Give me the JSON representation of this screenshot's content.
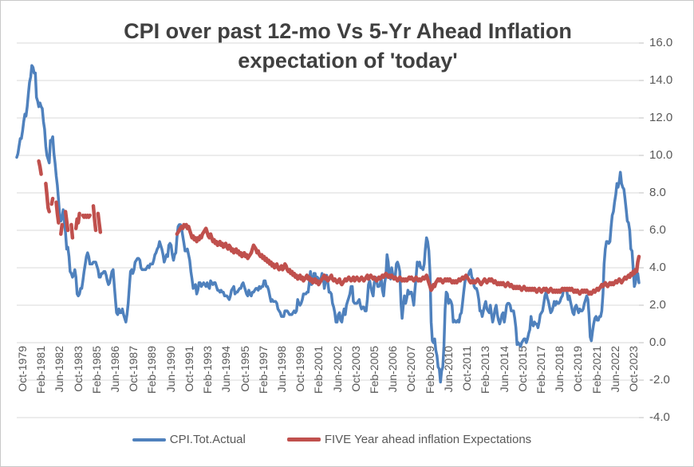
{
  "title": {
    "line1": "CPI over past 12-mo Vs 5-Yr Ahead Inflation",
    "line2": "expectation of 'today'"
  },
  "colors": {
    "cpi_line": "#4F81BD",
    "expectations_line": "#C0504D",
    "gridline": "#D9D9D9",
    "tick": "#BFBFBF",
    "axis_text": "#595959",
    "title_text": "#404040"
  },
  "y_axis": {
    "tick_labels": [
      "16.0",
      "14.0",
      "12.0",
      "10.0",
      "8.0",
      "6.0",
      "4.0",
      "2.0",
      "0.0",
      "-2.0",
      "-4.0"
    ],
    "min": -4,
    "max": 16,
    "step": 2
  },
  "x_axis": {
    "frequency": "monthly",
    "range_start": "Oct-1979",
    "range_end": "Oct-2023",
    "tick_labels": [
      "Oct-1979",
      "Feb-1981",
      "Jun-1982",
      "Oct-1983",
      "Feb-1985",
      "Jun-1986",
      "Oct-1987",
      "Feb-1989",
      "Jun-1990",
      "Oct-1991",
      "Feb-1993",
      "Jun-1994",
      "Oct-1995",
      "Feb-1997",
      "Jun-1998",
      "Oct-1999",
      "Feb-2001",
      "Jun-2002",
      "Oct-2003",
      "Feb-2005",
      "Jun-2006",
      "Oct-2007",
      "Feb-2009",
      "Jun-2010",
      "Oct-2011",
      "Feb-2013",
      "Jun-2014",
      "Oct-2015",
      "Feb-2017",
      "Jun-2018",
      "Oct-2019",
      "Feb-2021",
      "Jun-2022",
      "Oct-2023"
    ]
  },
  "chart_data": {
    "type": "line",
    "title": "CPI over past 12-mo Vs 5-Yr Ahead Inflation expectation of 'today'",
    "xlabel": "",
    "ylabel": "",
    "ylim": [
      -4,
      16
    ],
    "grid": "horizontal",
    "legend_position": "bottom",
    "x_range": [
      "Oct-1979",
      "Oct-2023"
    ],
    "x_frequency": "monthly",
    "series": [
      {
        "name": "CPI.Tot.Actual",
        "color": "#4F81BD",
        "values": [
          9.9,
          10.1,
          10.5,
          10.9,
          10.9,
          11.3,
          11.8,
          12.2,
          12.1,
          12.6,
          13.3,
          13.9,
          14.2,
          14.8,
          14.7,
          14.4,
          14.4,
          13.1,
          12.9,
          12.6,
          12.8,
          12.6,
          12.5,
          11.8,
          11.4,
          10.5,
          10.0,
          9.8,
          9.6,
          10.8,
          10.8,
          11.0,
          10.1,
          9.6,
          8.9,
          8.4,
          7.6,
          6.8,
          6.5,
          6.7,
          7.1,
          6.4,
          5.9,
          5.0,
          5.1,
          4.6,
          3.8,
          3.7,
          3.5,
          3.6,
          3.9,
          3.5,
          2.6,
          2.5,
          2.6,
          2.9,
          2.9,
          3.3,
          3.8,
          4.2,
          4.6,
          4.8,
          4.6,
          4.2,
          4.2,
          4.2,
          4.3,
          4.3,
          4.3,
          4.1,
          3.9,
          3.5,
          3.5,
          3.7,
          3.7,
          3.8,
          3.8,
          3.6,
          3.3,
          3.1,
          3.2,
          3.5,
          3.8,
          3.9,
          3.1,
          2.3,
          1.6,
          1.5,
          1.8,
          1.6,
          1.6,
          1.8,
          1.5,
          1.3,
          1.1,
          1.5,
          2.1,
          3.0,
          3.8,
          3.9,
          3.7,
          3.9,
          4.3,
          4.4,
          4.5,
          4.5,
          4.4,
          4.0,
          3.9,
          3.9,
          3.9,
          3.9,
          4.0,
          4.1,
          4.0,
          4.2,
          4.2,
          4.2,
          4.4,
          4.7,
          4.8,
          5.0,
          5.1,
          5.4,
          5.2,
          5.0,
          4.7,
          4.3,
          4.5,
          4.7,
          4.6,
          5.2,
          5.3,
          5.2,
          4.7,
          4.4,
          4.7,
          4.8,
          5.6,
          6.2,
          6.3,
          6.3,
          6.1,
          5.7,
          5.3,
          4.9,
          4.9,
          5.0,
          4.7,
          4.4,
          3.8,
          3.4,
          2.9,
          3.0,
          3.1,
          2.6,
          2.8,
          3.2,
          3.2,
          3.0,
          3.1,
          3.2,
          3.1,
          3.0,
          3.2,
          3.0,
          2.9,
          3.3,
          3.2,
          3.1,
          3.2,
          3.2,
          3.0,
          2.8,
          2.8,
          2.7,
          2.8,
          2.7,
          2.7,
          2.5,
          2.5,
          2.5,
          2.4,
          2.3,
          2.5,
          2.8,
          2.9,
          3.0,
          2.6,
          2.7,
          2.7,
          2.8,
          2.9,
          2.9,
          3.1,
          3.2,
          3.0,
          2.8,
          2.6,
          2.5,
          2.8,
          2.6,
          2.5,
          2.7,
          2.7,
          2.8,
          2.9,
          2.9,
          2.8,
          3.0,
          2.9,
          3.0,
          3.0,
          3.3,
          3.3,
          3.0,
          3.0,
          2.8,
          2.5,
          2.2,
          2.3,
          2.2,
          2.2,
          2.2,
          2.1,
          1.8,
          1.7,
          1.6,
          1.4,
          1.4,
          1.4,
          1.7,
          1.7,
          1.7,
          1.6,
          1.5,
          1.5,
          1.5,
          1.6,
          1.7,
          1.6,
          1.7,
          2.3,
          2.1,
          2.0,
          2.1,
          2.3,
          2.6,
          2.6,
          2.6,
          2.7,
          2.7,
          3.2,
          3.8,
          3.1,
          3.2,
          3.7,
          3.7,
          3.4,
          3.5,
          3.4,
          3.4,
          3.4,
          3.7,
          3.5,
          2.9,
          3.3,
          3.6,
          3.2,
          2.7,
          2.7,
          2.6,
          2.1,
          1.9,
          1.6,
          1.1,
          1.1,
          1.5,
          1.6,
          1.2,
          1.1,
          1.5,
          1.8,
          1.5,
          2.0,
          2.2,
          2.4,
          2.6,
          3.0,
          3.0,
          2.2,
          2.1,
          2.1,
          2.1,
          2.2,
          2.3,
          2.0,
          1.8,
          1.9,
          1.9,
          1.7,
          1.7,
          2.3,
          3.1,
          3.3,
          3.0,
          2.7,
          2.5,
          3.2,
          3.5,
          3.3,
          3.0,
          3.0,
          3.1,
          3.5,
          2.8,
          2.5,
          3.2,
          3.6,
          4.7,
          4.3,
          3.5,
          3.4,
          4.0,
          3.6,
          3.4,
          3.5,
          4.2,
          4.3,
          4.1,
          3.8,
          2.1,
          1.3,
          2.0,
          2.5,
          2.1,
          2.4,
          2.8,
          2.6,
          2.7,
          2.7,
          2.4,
          2.0,
          2.8,
          3.5,
          4.3,
          4.1,
          4.3,
          4.0,
          4.0,
          3.9,
          4.2,
          5.0,
          5.6,
          5.4,
          4.9,
          3.7,
          1.1,
          0.1,
          0.0,
          0.2,
          -0.4,
          -0.7,
          -1.3,
          -1.4,
          -2.1,
          -1.5,
          -1.3,
          -0.2,
          1.8,
          2.7,
          2.6,
          2.1,
          2.3,
          2.2,
          2.0,
          1.1,
          1.2,
          1.1,
          1.1,
          1.2,
          1.1,
          1.5,
          1.6,
          2.1,
          2.7,
          3.2,
          3.6,
          3.6,
          3.6,
          3.8,
          3.9,
          3.5,
          3.4,
          3.0,
          2.9,
          2.9,
          2.7,
          2.3,
          1.7,
          1.7,
          1.4,
          1.7,
          2.0,
          2.2,
          1.8,
          1.7,
          1.6,
          2.0,
          1.5,
          1.1,
          1.4,
          1.8,
          2.0,
          1.5,
          1.2,
          1.0,
          1.2,
          1.5,
          1.6,
          1.1,
          1.5,
          2.0,
          2.1,
          2.1,
          2.0,
          1.7,
          1.7,
          1.7,
          1.3,
          0.8,
          -0.1,
          0.0,
          -0.1,
          -0.2,
          0.0,
          0.1,
          0.2,
          0.2,
          0.0,
          0.2,
          0.5,
          0.7,
          1.4,
          1.0,
          0.9,
          1.1,
          1.0,
          1.0,
          0.8,
          1.1,
          1.5,
          1.6,
          1.7,
          2.1,
          2.5,
          2.7,
          2.4,
          2.2,
          1.9,
          1.6,
          1.7,
          1.9,
          2.2,
          2.0,
          2.2,
          2.1,
          2.1,
          2.2,
          2.4,
          2.5,
          2.8,
          2.9,
          2.9,
          2.7,
          2.3,
          2.5,
          2.2,
          1.9,
          1.6,
          1.5,
          1.9,
          2.0,
          1.8,
          1.6,
          1.8,
          1.7,
          1.7,
          1.8,
          2.1,
          2.3,
          2.5,
          2.3,
          1.5,
          0.3,
          0.1,
          0.6,
          1.0,
          1.3,
          1.4,
          1.2,
          1.2,
          1.4,
          1.4,
          1.7,
          2.6,
          4.2,
          5.0,
          5.4,
          5.4,
          5.3,
          5.4,
          6.2,
          6.8,
          7.0,
          7.5,
          7.9,
          8.5,
          8.3,
          8.6,
          9.1,
          8.5,
          8.3,
          8.2,
          7.7,
          7.1,
          6.5,
          6.4,
          6.0,
          5.0,
          4.9,
          4.0,
          3.0,
          3.2,
          3.7,
          3.7,
          3.2
        ]
      },
      {
        "name": "FIVE Year ahead inflation Expectations",
        "color": "#C0504D",
        "values": [
          null,
          null,
          null,
          null,
          null,
          null,
          null,
          null,
          null,
          null,
          null,
          null,
          null,
          null,
          null,
          null,
          null,
          null,
          null,
          9.7,
          9.4,
          9.0,
          null,
          null,
          null,
          8.5,
          7.9,
          7.2,
          7.0,
          null,
          7.4,
          7.7,
          null,
          null,
          7.5,
          6.9,
          6.4,
          null,
          5.8,
          6.3,
          null,
          null,
          7.0,
          6.5,
          6.0,
          null,
          null,
          6.3,
          5.6,
          null,
          null,
          6.1,
          6.6,
          6.4,
          6.9,
          null,
          null,
          6.8,
          6.7,
          6.8,
          6.7,
          6.8,
          6.7,
          6.8,
          null,
          null,
          7.3,
          6.6,
          6.0,
          null,
          6.9,
          6.4,
          5.9,
          null,
          null,
          null,
          null,
          null,
          null,
          null,
          null,
          null,
          null,
          null,
          null,
          null,
          null,
          null,
          null,
          null,
          null,
          null,
          null,
          null,
          null,
          null,
          null,
          null,
          null,
          null,
          null,
          null,
          null,
          null,
          null,
          null,
          null,
          null,
          null,
          null,
          null,
          null,
          null,
          null,
          null,
          null,
          null,
          null,
          null,
          null,
          null,
          null,
          null,
          null,
          null,
          null,
          null,
          null,
          null,
          null,
          null,
          null,
          null,
          null,
          null,
          null,
          null,
          null,
          5.8,
          5.9,
          6.0,
          6.1,
          6.2,
          6.1,
          6.3,
          6.2,
          6.3,
          6.1,
          6.2,
          6.0,
          5.8,
          5.6,
          5.7,
          5.5,
          5.6,
          5.4,
          5.6,
          5.5,
          5.7,
          5.6,
          5.8,
          5.9,
          6.0,
          6.1,
          5.9,
          5.7,
          5.6,
          5.8,
          5.6,
          5.4,
          5.5,
          5.3,
          5.4,
          5.2,
          5.3,
          5.4,
          5.2,
          5.3,
          5.1,
          5.2,
          5.3,
          5.1,
          5.0,
          5.2,
          5.1,
          4.9,
          5.0,
          4.8,
          4.9,
          5.0,
          4.8,
          4.9,
          4.7,
          4.8,
          4.6,
          4.7,
          4.8,
          4.6,
          4.7,
          4.5,
          4.6,
          4.7,
          4.8,
          5.0,
          5.2,
          5.1,
          5.0,
          4.8,
          4.9,
          4.7,
          4.6,
          4.7,
          4.5,
          4.6,
          4.4,
          4.5,
          4.3,
          4.4,
          4.2,
          4.3,
          4.1,
          4.2,
          4.0,
          4.1,
          4.2,
          4.0,
          3.9,
          4.0,
          4.1,
          3.9,
          4.0,
          4.2,
          4.1,
          3.9,
          3.8,
          3.9,
          3.7,
          3.8,
          3.6,
          3.7,
          3.5,
          3.6,
          3.4,
          3.5,
          3.6,
          3.4,
          3.5,
          3.3,
          3.4,
          3.5,
          3.6,
          3.4,
          3.5,
          3.3,
          3.4,
          3.2,
          3.3,
          3.4,
          3.2,
          3.3,
          3.1,
          3.2,
          3.3,
          3.4,
          3.5,
          3.6,
          3.4,
          3.5,
          3.3,
          3.4,
          3.5,
          3.6,
          3.4,
          3.3,
          3.4,
          3.3,
          3.2,
          3.3,
          3.4,
          3.2,
          3.1,
          3.2,
          3.3,
          3.4,
          3.3,
          3.4,
          3.5,
          3.4,
          3.3,
          3.4,
          3.5,
          3.3,
          3.4,
          3.5,
          3.4,
          3.3,
          3.4,
          3.5,
          3.4,
          3.3,
          3.4,
          3.5,
          3.6,
          3.4,
          3.5,
          3.6,
          3.5,
          3.4,
          3.5,
          3.4,
          3.3,
          3.4,
          3.5,
          3.4,
          3.5,
          3.6,
          3.5,
          3.6,
          3.7,
          3.6,
          3.5,
          3.6,
          3.5,
          3.6,
          3.5,
          3.4,
          3.5,
          3.4,
          3.3,
          3.4,
          3.5,
          3.4,
          3.3,
          3.4,
          3.3,
          3.4,
          3.3,
          3.4,
          3.5,
          3.4,
          3.5,
          3.4,
          3.3,
          3.4,
          3.5,
          3.4,
          3.3,
          3.4,
          3.3,
          3.4,
          3.5,
          3.4,
          3.5,
          3.6,
          3.4,
          3.2,
          3.0,
          2.8,
          2.9,
          3.1,
          3.0,
          3.2,
          3.3,
          3.4,
          3.3,
          3.4,
          3.3,
          3.2,
          3.3,
          3.4,
          3.3,
          3.4,
          3.3,
          3.4,
          3.3,
          3.2,
          3.3,
          3.2,
          3.3,
          3.2,
          3.3,
          3.4,
          3.3,
          3.4,
          3.5,
          3.4,
          3.5,
          3.6,
          3.5,
          3.4,
          3.3,
          3.2,
          3.3,
          3.2,
          3.3,
          3.2,
          3.3,
          3.4,
          3.3,
          3.2,
          3.1,
          3.2,
          3.3,
          3.4,
          3.3,
          3.2,
          3.3,
          3.4,
          3.3,
          3.4,
          3.3,
          3.2,
          3.3,
          3.2,
          3.1,
          3.2,
          3.1,
          3.2,
          3.1,
          3.2,
          3.1,
          3.0,
          3.1,
          3.2,
          3.1,
          3.0,
          3.1,
          3.0,
          2.9,
          3.0,
          2.9,
          3.0,
          2.9,
          3.0,
          2.9,
          2.8,
          2.9,
          3.0,
          2.9,
          2.8,
          2.9,
          2.8,
          2.9,
          2.8,
          2.9,
          2.8,
          2.9,
          2.8,
          2.7,
          2.8,
          2.9,
          2.8,
          2.7,
          2.8,
          2.9,
          2.8,
          2.9,
          2.8,
          2.7,
          2.8,
          2.9,
          2.8,
          2.7,
          2.8,
          2.7,
          2.8,
          2.7,
          2.8,
          2.7,
          2.8,
          2.9,
          2.8,
          2.9,
          2.8,
          2.9,
          2.8,
          2.9,
          2.8,
          2.9,
          2.8,
          2.7,
          2.8,
          2.7,
          2.8,
          2.7,
          2.6,
          2.7,
          2.8,
          2.7,
          2.8,
          2.7,
          2.8,
          2.7,
          2.6,
          2.7,
          2.6,
          2.7,
          2.8,
          2.7,
          2.8,
          2.9,
          2.8,
          2.9,
          3.0,
          3.1,
          3.0,
          3.1,
          3.2,
          3.1,
          3.0,
          3.1,
          3.2,
          3.1,
          3.2,
          3.1,
          3.2,
          3.3,
          3.2,
          3.3,
          3.4,
          3.3,
          3.2,
          3.3,
          3.4,
          3.5,
          3.4,
          3.5,
          3.6,
          3.5,
          3.7,
          3.6,
          3.8,
          3.7,
          3.9,
          3.8,
          4.3,
          4.6
        ]
      }
    ]
  },
  "legend": {
    "items": [
      {
        "label": "CPI.Tot.Actual"
      },
      {
        "label": "FIVE Year ahead inflation Expectations"
      }
    ]
  }
}
